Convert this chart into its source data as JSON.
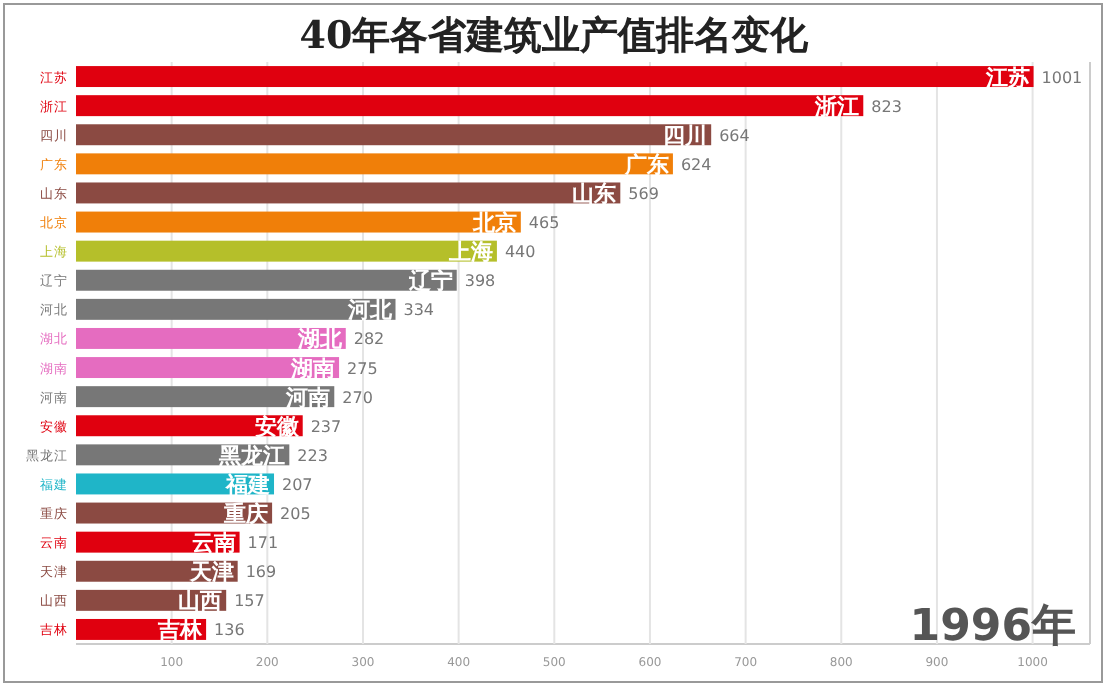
{
  "chart_data": {
    "type": "bar",
    "orientation": "horizontal",
    "title": "40年各省建筑业产值排名变化",
    "categories": [
      "江苏",
      "浙江",
      "四川",
      "广东",
      "山东",
      "北京",
      "上海",
      "辽宁",
      "河北",
      "湖北",
      "湖南",
      "河南",
      "安徽",
      "黑龙江",
      "福建",
      "重庆",
      "云南",
      "天津",
      "山西",
      "吉林"
    ],
    "values": [
      1001,
      823,
      664,
      624,
      569,
      465,
      440,
      398,
      334,
      282,
      275,
      270,
      237,
      223,
      207,
      205,
      171,
      169,
      157,
      136
    ],
    "colors": [
      "#e0000f",
      "#e0000f",
      "#8b4a42",
      "#f07f09",
      "#8b4a42",
      "#f07f09",
      "#b5bf2a",
      "#777777",
      "#777777",
      "#e56cc0",
      "#e56cc0",
      "#777777",
      "#e0000f",
      "#777777",
      "#1fb5c8",
      "#8b4a42",
      "#e0000f",
      "#8b4a42",
      "#8b4a42",
      "#e0000f"
    ],
    "xlim": [
      0,
      1060
    ],
    "xticks": [
      100,
      200,
      300,
      400,
      500,
      600,
      700,
      800,
      900,
      1000
    ],
    "grid": "x",
    "data_labels": true,
    "annotations": [
      "1996年"
    ]
  }
}
